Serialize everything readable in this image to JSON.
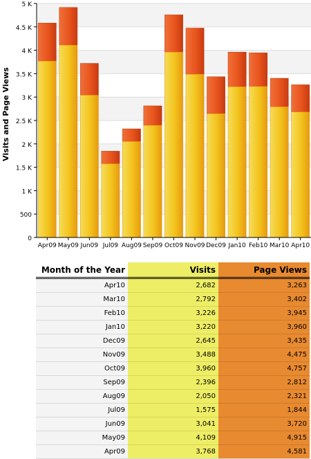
{
  "chart_data": {
    "type": "bar",
    "ylabel": "Visits and Page Views",
    "xlabel": "",
    "ylim": [
      0,
      5000
    ],
    "y_ticks": [
      "0",
      "500",
      "1 K",
      "1.5 K",
      "2 K",
      "2.5 K",
      "3 K",
      "3.5 K",
      "4 K",
      "4.5 K",
      "5 K"
    ],
    "grid": true,
    "categories": [
      "Apr09",
      "May09",
      "Jun09",
      "Jul09",
      "Aug09",
      "Sep09",
      "Oct09",
      "Nov09",
      "Dec09",
      "Jan10",
      "Feb10",
      "Mar10",
      "Apr10"
    ],
    "series": [
      {
        "name": "Visits",
        "values": [
          3768,
          4109,
          3041,
          1575,
          2050,
          2396,
          3960,
          3488,
          2645,
          3220,
          3226,
          2792,
          2682
        ]
      },
      {
        "name": "Page Views",
        "values": [
          4581,
          4915,
          3720,
          1844,
          2321,
          2812,
          4757,
          4475,
          3435,
          3960,
          3945,
          3402,
          3263
        ]
      }
    ],
    "colors": {
      "visits": "#f2c21e",
      "page_views": "#e8551c"
    }
  },
  "table": {
    "headers": [
      "Month of the Year",
      "Visits",
      "Page Views"
    ],
    "rows": [
      [
        "Apr10",
        "2,682",
        "3,263"
      ],
      [
        "Mar10",
        "2,792",
        "3,402"
      ],
      [
        "Feb10",
        "3,226",
        "3,945"
      ],
      [
        "Jan10",
        "3,220",
        "3,960"
      ],
      [
        "Dec09",
        "2,645",
        "3,435"
      ],
      [
        "Nov09",
        "3,488",
        "4,475"
      ],
      [
        "Oct09",
        "3,960",
        "4,757"
      ],
      [
        "Sep09",
        "2,396",
        "2,812"
      ],
      [
        "Aug09",
        "2,050",
        "2,321"
      ],
      [
        "Jul09",
        "1,575",
        "1,844"
      ],
      [
        "Jun09",
        "3,041",
        "3,720"
      ],
      [
        "May09",
        "4,109",
        "4,915"
      ],
      [
        "Apr09",
        "3,768",
        "4,581"
      ]
    ]
  }
}
